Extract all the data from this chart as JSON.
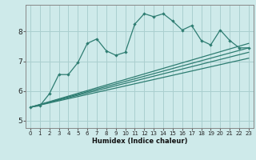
{
  "xlabel": "Humidex (Indice chaleur)",
  "bg_color": "#ceeaea",
  "grid_color": "#aacfcf",
  "line_color": "#2e7d72",
  "xlim": [
    -0.5,
    23.5
  ],
  "ylim": [
    4.75,
    8.9
  ],
  "yticks": [
    5,
    6,
    7,
    8
  ],
  "xticks": [
    0,
    1,
    2,
    3,
    4,
    5,
    6,
    7,
    8,
    9,
    10,
    11,
    12,
    13,
    14,
    15,
    16,
    17,
    18,
    19,
    20,
    21,
    22,
    23
  ],
  "main_x": [
    0,
    1,
    2,
    3,
    4,
    5,
    6,
    7,
    8,
    9,
    10,
    11,
    12,
    13,
    14,
    15,
    16,
    17,
    18,
    19,
    20,
    21,
    22,
    23
  ],
  "main_y": [
    5.45,
    5.5,
    5.9,
    6.55,
    6.55,
    6.95,
    7.6,
    7.75,
    7.35,
    7.2,
    7.3,
    8.25,
    8.6,
    8.5,
    8.6,
    8.35,
    8.05,
    8.2,
    7.7,
    7.55,
    8.05,
    7.7,
    7.45,
    7.45
  ],
  "trend1_x": [
    0,
    23
  ],
  "trend1_y": [
    5.45,
    7.6
  ],
  "trend2_x": [
    0,
    23
  ],
  "trend2_y": [
    5.45,
    7.1
  ],
  "trend3_x": [
    0,
    23
  ],
  "trend3_y": [
    5.45,
    7.45
  ],
  "trend4_x": [
    0,
    23
  ],
  "trend4_y": [
    5.45,
    7.3
  ]
}
